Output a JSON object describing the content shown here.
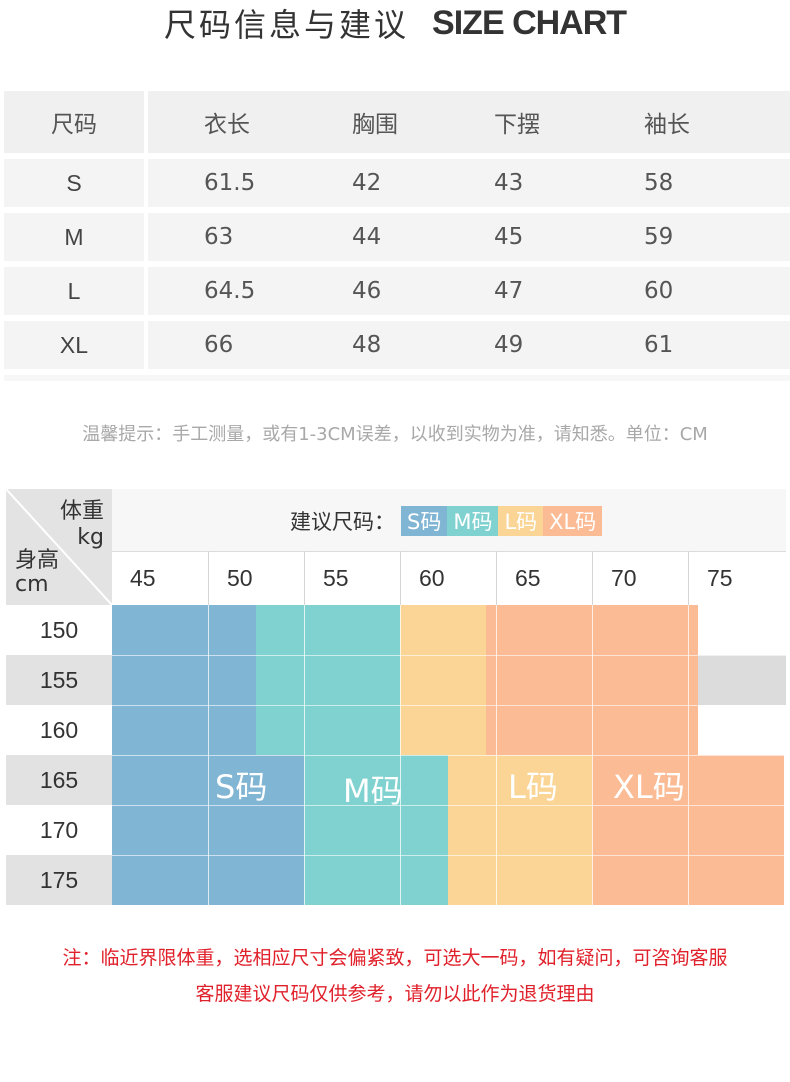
{
  "header": {
    "title_cn": "尺码信息与建议",
    "title_en": "SIZE CHART"
  },
  "size_table": {
    "headers": [
      "尺码",
      "衣长",
      "胸围",
      "下摆",
      "袖长"
    ],
    "rows": [
      [
        "S",
        "61.5",
        "42",
        "43",
        "58"
      ],
      [
        "M",
        "63",
        "44",
        "45",
        "59"
      ],
      [
        "L",
        "64.5",
        "46",
        "47",
        "60"
      ],
      [
        "XL",
        "66",
        "48",
        "49",
        "61"
      ]
    ]
  },
  "note_tip": "温馨提示：手工测量，或有1-3CM误差，以收到实物为准，请知悉。单位：CM",
  "chart": {
    "weight_label": "体重",
    "weight_unit": "kg",
    "height_label": "身高",
    "height_unit": "cm",
    "legend_label": "建议尺码：",
    "legend": [
      {
        "label": "S码",
        "color": "#80b5d3"
      },
      {
        "label": "M码",
        "color": "#80d2d0"
      },
      {
        "label": "L码",
        "color": "#fbd596"
      },
      {
        "label": "XL码",
        "color": "#fbbb94"
      }
    ],
    "weights": [
      "45",
      "50",
      "55",
      "60",
      "65",
      "70",
      "75"
    ],
    "heights": [
      "150",
      "155",
      "160",
      "165",
      "170",
      "175"
    ],
    "recommendations": [
      {
        "heights": [
          "150",
          "155",
          "160"
        ],
        "S": [
          45,
          52.5
        ],
        "M": [
          52.5,
          60
        ],
        "L": [
          60,
          64.5
        ],
        "XL": [
          64.5,
          75.5
        ]
      },
      {
        "heights": [
          "165",
          "170",
          "175"
        ],
        "S": [
          45,
          55
        ],
        "M": [
          55,
          62.5
        ],
        "L": [
          62.5,
          70
        ],
        "XL": [
          70,
          80
        ]
      }
    ],
    "size_labels": [
      "S码",
      "M码",
      "L码",
      "XL码"
    ],
    "grey_cell_color": "#dcdcdc"
  },
  "note_warning": {
    "line1": "注：临近界限体重，选相应尺寸会偏紧致，可选大一码，如有疑问，可咨询客服",
    "line2": "客服建议尺码仅供参考，请勿以此作为退货理由"
  }
}
